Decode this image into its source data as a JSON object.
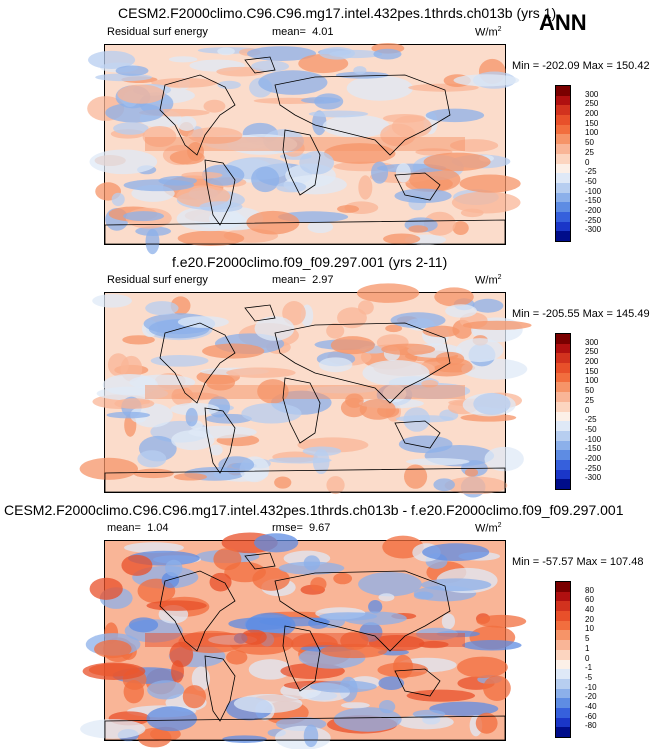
{
  "season": "ANN",
  "panels": [
    {
      "title": "CESM2.F2000climo.C96.C96.mg17.intel.432pes.1thrds.ch013b (yrs 1)",
      "left_label": "Residual surf energy",
      "stat_label": "mean=",
      "stat_value": "4.01",
      "units": "W/m",
      "units_exp": "2",
      "minmax": "Min = -202.09 Max = 150.42",
      "colorbar_labels": [
        "300",
        "250",
        "200",
        "150",
        "100",
        "50",
        "25",
        "0",
        "-25",
        "-50",
        "-100",
        "-150",
        "-200",
        "-250",
        "-300"
      ],
      "colorbar_colors": [
        "#7a0000",
        "#b01010",
        "#d2321e",
        "#e8502a",
        "#f26e3e",
        "#f69468",
        "#f9b597",
        "#fcd5c0",
        "#fcf0e8",
        "#dfe9f7",
        "#b7cef0",
        "#8cb0ea",
        "#5e8ce3",
        "#3660dc",
        "#1a36c8",
        "#000d8a"
      ]
    },
    {
      "title": "f.e20.F2000climo.f09_f09.297.001 (yrs 2-11)",
      "left_label": "Residual surf energy",
      "stat_label": "mean=",
      "stat_value": "2.97",
      "units": "W/m",
      "units_exp": "2",
      "minmax": "Min = -205.55 Max = 145.49",
      "colorbar_labels": [
        "300",
        "250",
        "200",
        "150",
        "100",
        "50",
        "25",
        "0",
        "-25",
        "-50",
        "-100",
        "-150",
        "-200",
        "-250",
        "-300"
      ],
      "colorbar_colors": [
        "#7a0000",
        "#b01010",
        "#d2321e",
        "#e8502a",
        "#f26e3e",
        "#f69468",
        "#f9b597",
        "#fcd5c0",
        "#fcf0e8",
        "#dfe9f7",
        "#b7cef0",
        "#8cb0ea",
        "#5e8ce3",
        "#3660dc",
        "#1a36c8",
        "#000d8a"
      ]
    },
    {
      "title": "CESM2.F2000climo.C96.C96.mg17.intel.432pes.1thrds.ch013b - f.e20.F2000climo.f09_f09.297.001",
      "mean_label": "mean=",
      "mean_value": "1.04",
      "stat_label": "rmse=",
      "stat_value": "9.67",
      "units": "W/m",
      "units_exp": "2",
      "minmax": "Min = -57.57 Max = 107.48",
      "colorbar_labels": [
        "80",
        "60",
        "40",
        "20",
        "10",
        "5",
        "1",
        "0",
        "-1",
        "-5",
        "-10",
        "-20",
        "-40",
        "-60",
        "-80"
      ],
      "colorbar_colors": [
        "#7a0000",
        "#b01010",
        "#d2321e",
        "#e8502a",
        "#f26e3e",
        "#f69468",
        "#f9b597",
        "#fcd5c0",
        "#fcf0e8",
        "#dfe9f7",
        "#b7cef0",
        "#8cb0ea",
        "#5e8ce3",
        "#3660dc",
        "#1a36c8",
        "#000d8a"
      ]
    }
  ]
}
